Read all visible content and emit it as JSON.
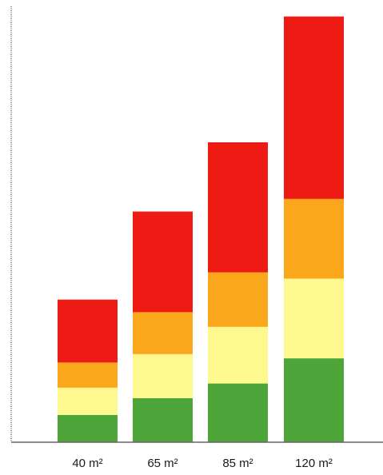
{
  "chart_data": {
    "type": "bar",
    "stacked": true,
    "categories": [
      "40 m²",
      "65 m²",
      "85 m²",
      "120 m²"
    ],
    "series": [
      {
        "color": "#4ea63a",
        "values": [
          6.5,
          10.5,
          14,
          20
        ]
      },
      {
        "color": "#fdf98f",
        "values": [
          6.5,
          10.5,
          13.5,
          19
        ]
      },
      {
        "color": "#fba71b",
        "values": [
          6,
          10,
          13,
          19
        ]
      },
      {
        "color": "#ee1b14",
        "values": [
          15,
          24,
          31,
          43.5
        ]
      }
    ],
    "ylim": [
      0,
      102
    ],
    "title": "",
    "xlabel": "",
    "ylabel": "",
    "grid": false,
    "legend": "none",
    "axis_color": "#666666"
  }
}
